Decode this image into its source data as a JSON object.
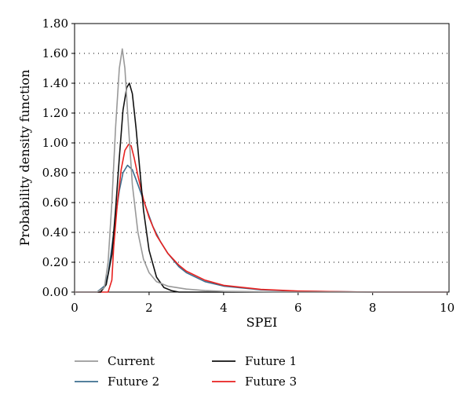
{
  "chart_data": {
    "type": "line",
    "title": "",
    "xlabel": "SPEI",
    "ylabel": "Probability density function",
    "xlim": [
      0,
      10.05
    ],
    "ylim": [
      0,
      1.8
    ],
    "xticks": [
      0,
      2,
      4,
      6,
      8,
      10
    ],
    "xtick_labels": [
      "0",
      "2",
      "4",
      "6",
      "8",
      "10"
    ],
    "yticks": [
      0,
      0.2,
      0.4,
      0.6,
      0.8,
      1.0,
      1.2,
      1.4,
      1.6,
      1.8
    ],
    "ytick_labels": [
      "0.00",
      "0.20",
      "0.40",
      "0.60",
      "0.80",
      "1.00",
      "1.20",
      "1.40",
      "1.60",
      "1.80"
    ],
    "grid": "horizontal-dotted",
    "legend_position": "bottom",
    "series": [
      {
        "name": "Current",
        "color": "#999999",
        "x": [
          0,
          0.6,
          0.8,
          0.9,
          1.0,
          1.1,
          1.2,
          1.28,
          1.35,
          1.45,
          1.55,
          1.7,
          1.85,
          2.0,
          2.2,
          2.5,
          3.0,
          3.5,
          4.0,
          5.0,
          6.0,
          8.0,
          10.0
        ],
        "y": [
          0,
          0.0,
          0.03,
          0.2,
          0.6,
          1.1,
          1.5,
          1.63,
          1.5,
          1.1,
          0.72,
          0.4,
          0.22,
          0.13,
          0.07,
          0.04,
          0.02,
          0.01,
          0.005,
          0.002,
          0.0,
          0.0,
          0.0
        ]
      },
      {
        "name": "Future 1",
        "color": "#111111",
        "x": [
          0,
          0.7,
          0.85,
          1.0,
          1.1,
          1.2,
          1.3,
          1.4,
          1.47,
          1.55,
          1.65,
          1.75,
          1.85,
          2.0,
          2.2,
          2.4,
          2.6,
          2.8,
          3.2,
          10.0
        ],
        "y": [
          0,
          0.0,
          0.05,
          0.25,
          0.55,
          0.9,
          1.22,
          1.37,
          1.4,
          1.33,
          1.1,
          0.82,
          0.55,
          0.28,
          0.1,
          0.03,
          0.01,
          0.0,
          0.0,
          0.0
        ]
      },
      {
        "name": "Future 2",
        "color": "#3b6e8f",
        "x": [
          0,
          0.6,
          0.8,
          0.9,
          1.0,
          1.1,
          1.2,
          1.3,
          1.42,
          1.55,
          1.7,
          1.9,
          2.1,
          2.3,
          2.5,
          2.8,
          3.0,
          3.5,
          4.0,
          5.0,
          6.0,
          7.0,
          8.0,
          10.0
        ],
        "y": [
          0,
          0.0,
          0.04,
          0.12,
          0.3,
          0.5,
          0.68,
          0.8,
          0.85,
          0.82,
          0.72,
          0.58,
          0.44,
          0.34,
          0.26,
          0.17,
          0.13,
          0.07,
          0.04,
          0.015,
          0.006,
          0.003,
          0.0,
          0.0
        ]
      },
      {
        "name": "Future 3",
        "color": "#e8211f",
        "x": [
          0,
          0.9,
          1.0,
          1.05,
          1.15,
          1.25,
          1.35,
          1.45,
          1.52,
          1.6,
          1.7,
          1.85,
          2.0,
          2.2,
          2.5,
          2.8,
          3.0,
          3.5,
          4.0,
          5.0,
          6.0,
          7.0,
          8.0,
          10.0
        ],
        "y": [
          0,
          0.0,
          0.08,
          0.3,
          0.6,
          0.82,
          0.95,
          0.99,
          0.98,
          0.9,
          0.78,
          0.62,
          0.5,
          0.38,
          0.26,
          0.18,
          0.14,
          0.08,
          0.045,
          0.018,
          0.007,
          0.003,
          0.0,
          0.0
        ]
      }
    ]
  }
}
